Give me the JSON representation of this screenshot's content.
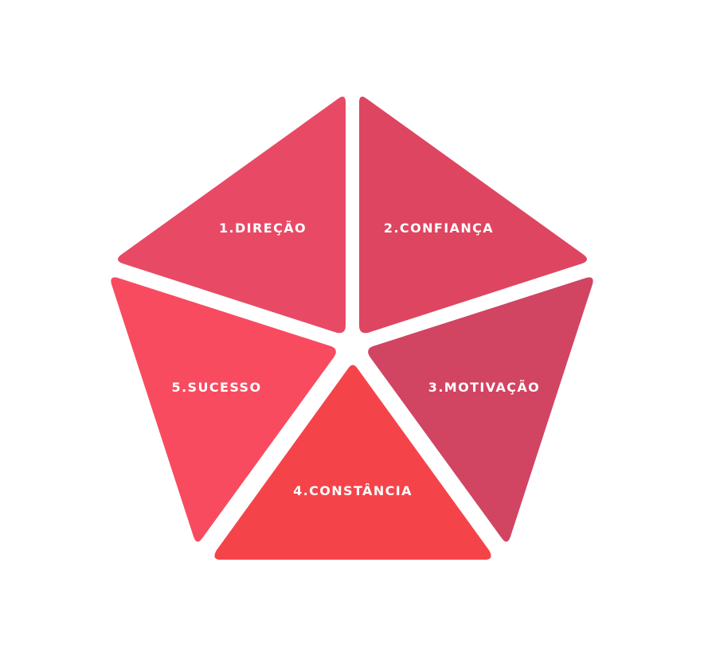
{
  "diagram": {
    "segments": [
      {
        "label": "1.DIREÇÃO",
        "color": "#E84A66"
      },
      {
        "label": "2.CONFIANÇA",
        "color": "#DE4560"
      },
      {
        "label": "3.MOTIVAÇÃO",
        "color": "#D14462"
      },
      {
        "label": "4.CONSTÂNCIA",
        "color": "#F4444A"
      },
      {
        "label": "5.SUCESSO",
        "color": "#F84B60"
      }
    ]
  }
}
